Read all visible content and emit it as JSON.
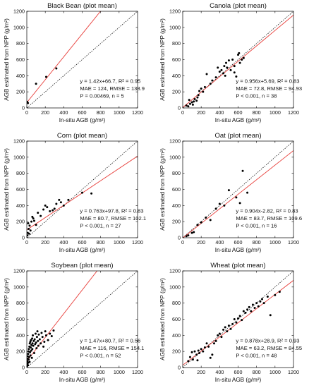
{
  "figure": {
    "xlabel": "In-situ AGB (g/m²)",
    "ylabel": "AGB estimated from NPP (g/m²)",
    "colors": {
      "fit_line": "#e8403c",
      "points": "#000000",
      "one_to_one": "#000000"
    }
  },
  "chart_data": [
    {
      "type": "scatter",
      "title": "Black Bean (plot mean)",
      "xlim": [
        0,
        1200
      ],
      "ylim": [
        0,
        1200
      ],
      "xticks": [
        0,
        200,
        400,
        600,
        800,
        1000,
        1200
      ],
      "yticks": [
        0,
        200,
        400,
        600,
        800,
        1000,
        1200
      ],
      "reference_line": "1:1 (dotted)",
      "fit": {
        "slope": 1.42,
        "intercept": 66.7
      },
      "stats": [
        "y = 1.42x+66.7, R² = 0.95",
        "MAE = 124, RMSE = 138.9",
        "P = 0.00469, n = 5"
      ],
      "points": [
        [
          5,
          75
        ],
        [
          12,
          60
        ],
        [
          100,
          300
        ],
        [
          210,
          385
        ],
        [
          320,
          490
        ]
      ]
    },
    {
      "type": "scatter",
      "title": "Canola (plot mean)",
      "xlim": [
        0,
        1200
      ],
      "ylim": [
        0,
        1200
      ],
      "xticks": [
        0,
        200,
        400,
        600,
        800,
        1000,
        1200
      ],
      "yticks": [
        0,
        200,
        400,
        600,
        800,
        1000,
        1200
      ],
      "reference_line": "1:1 (dotted)",
      "fit": {
        "slope": 0.956,
        "intercept": 5.69
      },
      "stats": [
        "y = 0.956x+5.69, R² = 0.83",
        "MAE = 72.8, RMSE = 94.93",
        "P < 0.001, n = 38"
      ],
      "points": [
        [
          40,
          30
        ],
        [
          60,
          20
        ],
        [
          70,
          100
        ],
        [
          80,
          50
        ],
        [
          100,
          70
        ],
        [
          110,
          40
        ],
        [
          120,
          80
        ],
        [
          130,
          110
        ],
        [
          150,
          90
        ],
        [
          160,
          130
        ],
        [
          170,
          160
        ],
        [
          180,
          210
        ],
        [
          200,
          240
        ],
        [
          220,
          200
        ],
        [
          240,
          260
        ],
        [
          260,
          420
        ],
        [
          300,
          300
        ],
        [
          320,
          340
        ],
        [
          360,
          380
        ],
        [
          380,
          500
        ],
        [
          400,
          450
        ],
        [
          420,
          470
        ],
        [
          440,
          430
        ],
        [
          450,
          520
        ],
        [
          460,
          400
        ],
        [
          470,
          560
        ],
        [
          480,
          500
        ],
        [
          500,
          590
        ],
        [
          520,
          470
        ],
        [
          540,
          600
        ],
        [
          560,
          520
        ],
        [
          580,
          390
        ],
        [
          600,
          660
        ],
        [
          610,
          680
        ],
        [
          620,
          560
        ],
        [
          640,
          600
        ],
        [
          660,
          620
        ],
        [
          560,
          440
        ]
      ]
    },
    {
      "type": "scatter",
      "title": "Corn (plot mean)",
      "xlim": [
        0,
        1200
      ],
      "ylim": [
        0,
        1200
      ],
      "xticks": [
        0,
        200,
        400,
        600,
        800,
        1000,
        1200
      ],
      "yticks": [
        0,
        200,
        400,
        600,
        800,
        1000,
        1200
      ],
      "reference_line": "1:1 (dotted)",
      "fit": {
        "slope": 0.763,
        "intercept": 97.8
      },
      "stats": [
        "y = 0.763x+97.8, R² = 0.83",
        "MAE = 80.7, RMSE = 102.1",
        "P < 0.001, n = 27"
      ],
      "points": [
        [
          5,
          30
        ],
        [
          10,
          60
        ],
        [
          15,
          180
        ],
        [
          20,
          110
        ],
        [
          25,
          50
        ],
        [
          30,
          150
        ],
        [
          40,
          90
        ],
        [
          50,
          200
        ],
        [
          60,
          260
        ],
        [
          70,
          240
        ],
        [
          80,
          210
        ],
        [
          100,
          160
        ],
        [
          120,
          310
        ],
        [
          150,
          270
        ],
        [
          180,
          350
        ],
        [
          200,
          400
        ],
        [
          220,
          380
        ],
        [
          250,
          330
        ],
        [
          280,
          340
        ],
        [
          300,
          360
        ],
        [
          320,
          420
        ],
        [
          350,
          470
        ],
        [
          370,
          440
        ],
        [
          400,
          400
        ],
        [
          450,
          470
        ],
        [
          600,
          560
        ],
        [
          700,
          550
        ]
      ]
    },
    {
      "type": "scatter",
      "title": "Oat (plot mean)",
      "xlim": [
        0,
        1200
      ],
      "ylim": [
        0,
        1200
      ],
      "xticks": [
        0,
        200,
        400,
        600,
        800,
        1000,
        1200
      ],
      "yticks": [
        0,
        200,
        400,
        600,
        800,
        1000,
        1200
      ],
      "reference_line": "1:1 (dotted)",
      "fit": {
        "slope": 0.904,
        "intercept": -2.82
      },
      "stats": [
        "y = 0.904x-2.82, R² = 0.83",
        "MAE = 83.7, RMSE = 109.6",
        "P < 0.001, n = 16"
      ],
      "points": [
        [
          40,
          20
        ],
        [
          60,
          30
        ],
        [
          100,
          60
        ],
        [
          120,
          70
        ],
        [
          160,
          160
        ],
        [
          200,
          190
        ],
        [
          250,
          250
        ],
        [
          300,
          220
        ],
        [
          360,
          360
        ],
        [
          400,
          420
        ],
        [
          450,
          400
        ],
        [
          500,
          590
        ],
        [
          580,
          500
        ],
        [
          620,
          430
        ],
        [
          650,
          830
        ],
        [
          700,
          560
        ]
      ]
    },
    {
      "type": "scatter",
      "title": "Soybean (plot mean)",
      "xlim": [
        0,
        1200
      ],
      "ylim": [
        0,
        1200
      ],
      "xticks": [
        0,
        200,
        400,
        600,
        800,
        1000,
        1200
      ],
      "yticks": [
        0,
        200,
        400,
        600,
        800,
        1000,
        1200
      ],
      "reference_line": "1:1 (dotted)",
      "fit": {
        "slope": 1.47,
        "intercept": 80.7
      },
      "stats": [
        "y = 1.47x+80.7, R² = 0.56",
        "MAE = 116, RMSE = 154.1",
        "P < 0.001, n = 52"
      ],
      "points": [
        [
          3,
          20
        ],
        [
          5,
          50
        ],
        [
          6,
          80
        ],
        [
          8,
          110
        ],
        [
          10,
          140
        ],
        [
          12,
          30
        ],
        [
          14,
          170
        ],
        [
          15,
          60
        ],
        [
          18,
          200
        ],
        [
          20,
          100
        ],
        [
          22,
          230
        ],
        [
          25,
          130
        ],
        [
          28,
          260
        ],
        [
          30,
          70
        ],
        [
          32,
          300
        ],
        [
          35,
          190
        ],
        [
          38,
          320
        ],
        [
          40,
          150
        ],
        [
          42,
          250
        ],
        [
          45,
          340
        ],
        [
          48,
          210
        ],
        [
          50,
          280
        ],
        [
          55,
          120
        ],
        [
          58,
          360
        ],
        [
          60,
          230
        ],
        [
          62,
          300
        ],
        [
          65,
          400
        ],
        [
          70,
          270
        ],
        [
          75,
          330
        ],
        [
          80,
          180
        ],
        [
          85,
          350
        ],
        [
          90,
          290
        ],
        [
          95,
          420
        ],
        [
          100,
          310
        ],
        [
          105,
          240
        ],
        [
          110,
          380
        ],
        [
          115,
          450
        ],
        [
          120,
          330
        ],
        [
          125,
          270
        ],
        [
          130,
          410
        ],
        [
          140,
          350
        ],
        [
          150,
          300
        ],
        [
          160,
          430
        ],
        [
          170,
          380
        ],
        [
          180,
          260
        ],
        [
          190,
          320
        ],
        [
          200,
          450
        ],
        [
          210,
          400
        ],
        [
          230,
          340
        ],
        [
          250,
          420
        ],
        [
          270,
          390
        ],
        [
          290,
          460
        ]
      ]
    },
    {
      "type": "scatter",
      "title": "Wheat (plot mean)",
      "xlim": [
        0,
        1200
      ],
      "ylim": [
        0,
        1200
      ],
      "xticks": [
        0,
        200,
        400,
        600,
        800,
        1000,
        1200
      ],
      "yticks": [
        0,
        200,
        400,
        600,
        800,
        1000,
        1200
      ],
      "reference_line": "1:1 (dotted)",
      "fit": {
        "slope": 0.878,
        "intercept": 28.9
      },
      "stats": [
        "y = 0.878x+28.9, R² = 0.93",
        "MAE = 63.2, RMSE = 84.55",
        "P < 0.001, n = 48"
      ],
      "points": [
        [
          60,
          80
        ],
        [
          80,
          130
        ],
        [
          100,
          190
        ],
        [
          110,
          100
        ],
        [
          130,
          200
        ],
        [
          150,
          160
        ],
        [
          160,
          90
        ],
        [
          170,
          210
        ],
        [
          180,
          180
        ],
        [
          200,
          230
        ],
        [
          220,
          200
        ],
        [
          240,
          250
        ],
        [
          260,
          300
        ],
        [
          280,
          260
        ],
        [
          300,
          120
        ],
        [
          320,
          160
        ],
        [
          340,
          300
        ],
        [
          360,
          330
        ],
        [
          380,
          400
        ],
        [
          400,
          420
        ],
        [
          420,
          380
        ],
        [
          440,
          470
        ],
        [
          460,
          500
        ],
        [
          480,
          450
        ],
        [
          500,
          520
        ],
        [
          520,
          480
        ],
        [
          540,
          540
        ],
        [
          560,
          600
        ],
        [
          580,
          560
        ],
        [
          600,
          610
        ],
        [
          620,
          640
        ],
        [
          640,
          590
        ],
        [
          660,
          700
        ],
        [
          680,
          680
        ],
        [
          700,
          720
        ],
        [
          720,
          750
        ],
        [
          740,
          700
        ],
        [
          760,
          780
        ],
        [
          780,
          740
        ],
        [
          800,
          800
        ],
        [
          820,
          760
        ],
        [
          840,
          820
        ],
        [
          860,
          850
        ],
        [
          880,
          800
        ],
        [
          920,
          880
        ],
        [
          950,
          650
        ],
        [
          1000,
          900
        ],
        [
          1050,
          940
        ]
      ]
    }
  ]
}
